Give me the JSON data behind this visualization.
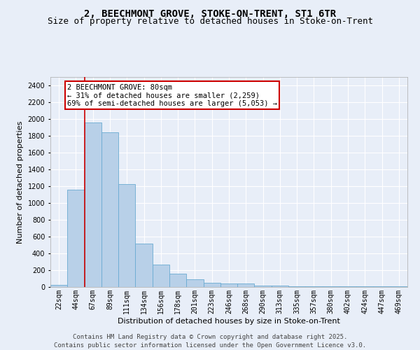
{
  "title_line1": "2, BEECHMONT GROVE, STOKE-ON-TRENT, ST1 6TR",
  "title_line2": "Size of property relative to detached houses in Stoke-on-Trent",
  "xlabel": "Distribution of detached houses by size in Stoke-on-Trent",
  "ylabel": "Number of detached properties",
  "categories": [
    "22sqm",
    "44sqm",
    "67sqm",
    "89sqm",
    "111sqm",
    "134sqm",
    "156sqm",
    "178sqm",
    "201sqm",
    "223sqm",
    "246sqm",
    "268sqm",
    "290sqm",
    "313sqm",
    "335sqm",
    "357sqm",
    "380sqm",
    "402sqm",
    "424sqm",
    "447sqm",
    "469sqm"
  ],
  "values": [
    28,
    1155,
    1960,
    1845,
    1225,
    515,
    270,
    155,
    90,
    50,
    40,
    40,
    20,
    20,
    5,
    5,
    5,
    5,
    5,
    5,
    5
  ],
  "bar_color": "#b8d0e8",
  "bar_edge_color": "#6aabd2",
  "bg_color": "#e8eef8",
  "grid_color": "#ffffff",
  "annotation_line1": "2 BEECHMONT GROVE: 80sqm",
  "annotation_line2": "← 31% of detached houses are smaller (2,259)",
  "annotation_line3": "69% of semi-detached houses are larger (5,053) →",
  "annotation_box_color": "#ffffff",
  "annotation_box_edge": "#cc0000",
  "vline_color": "#cc0000",
  "vline_x_bar": 1.5,
  "ylim": [
    0,
    2500
  ],
  "yticks": [
    0,
    200,
    400,
    600,
    800,
    1000,
    1200,
    1400,
    1600,
    1800,
    2000,
    2200,
    2400
  ],
  "footer_text": "Contains HM Land Registry data © Crown copyright and database right 2025.\nContains public sector information licensed under the Open Government Licence v3.0.",
  "title_fontsize": 10,
  "subtitle_fontsize": 9,
  "axis_label_fontsize": 8,
  "tick_fontsize": 7,
  "annotation_fontsize": 7.5,
  "footer_fontsize": 6.5
}
